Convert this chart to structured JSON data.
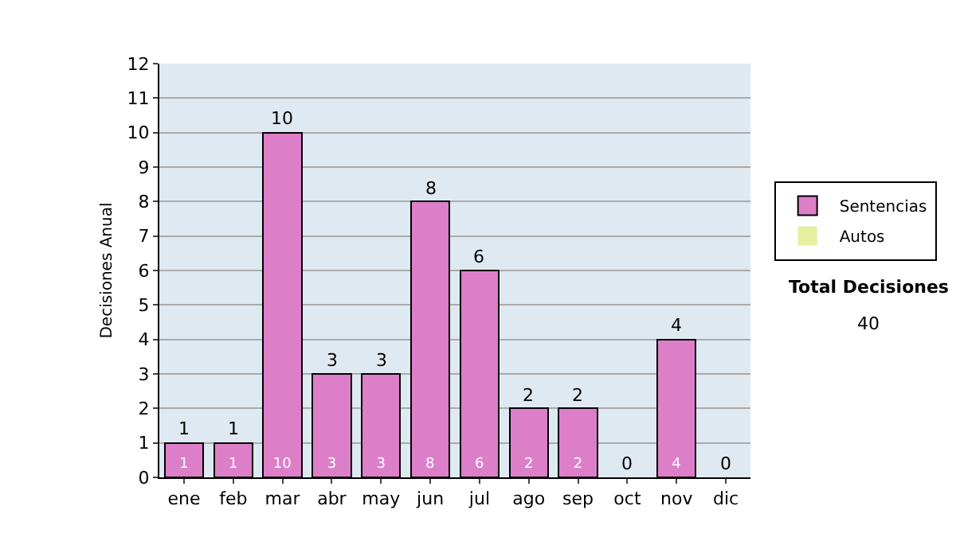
{
  "chart_data": {
    "type": "bar",
    "stacked": true,
    "ylabel": "Decisiones Anual",
    "categories": [
      "ene",
      "feb",
      "mar",
      "abr",
      "may",
      "jun",
      "jul",
      "ago",
      "sep",
      "oct",
      "nov",
      "dic"
    ],
    "series": [
      {
        "name": "Sentencias",
        "color": "#dd7fc8",
        "values": [
          1,
          1,
          10,
          3,
          3,
          8,
          6,
          2,
          2,
          0,
          4,
          0
        ],
        "value_labels": [
          "1",
          "1",
          "10",
          "3",
          "3",
          "8",
          "6",
          "2",
          "2",
          null,
          "4",
          null
        ]
      },
      {
        "name": "Autos",
        "color": "#e6efa0",
        "values": [
          0,
          0,
          0,
          0,
          0,
          0,
          0,
          0,
          0,
          0,
          0,
          0
        ]
      }
    ],
    "totals": [
      "1",
      "1",
      "10",
      "3",
      "3",
      "8",
      "6",
      "2",
      "2",
      "0",
      "4",
      "0"
    ],
    "ylim": [
      0,
      12
    ],
    "yticks": [
      0,
      1,
      2,
      3,
      4,
      5,
      6,
      7,
      8,
      9,
      10,
      11,
      12
    ],
    "grid": "y",
    "legend": "right",
    "annotations": [
      "Total Decisiones",
      "40"
    ]
  }
}
